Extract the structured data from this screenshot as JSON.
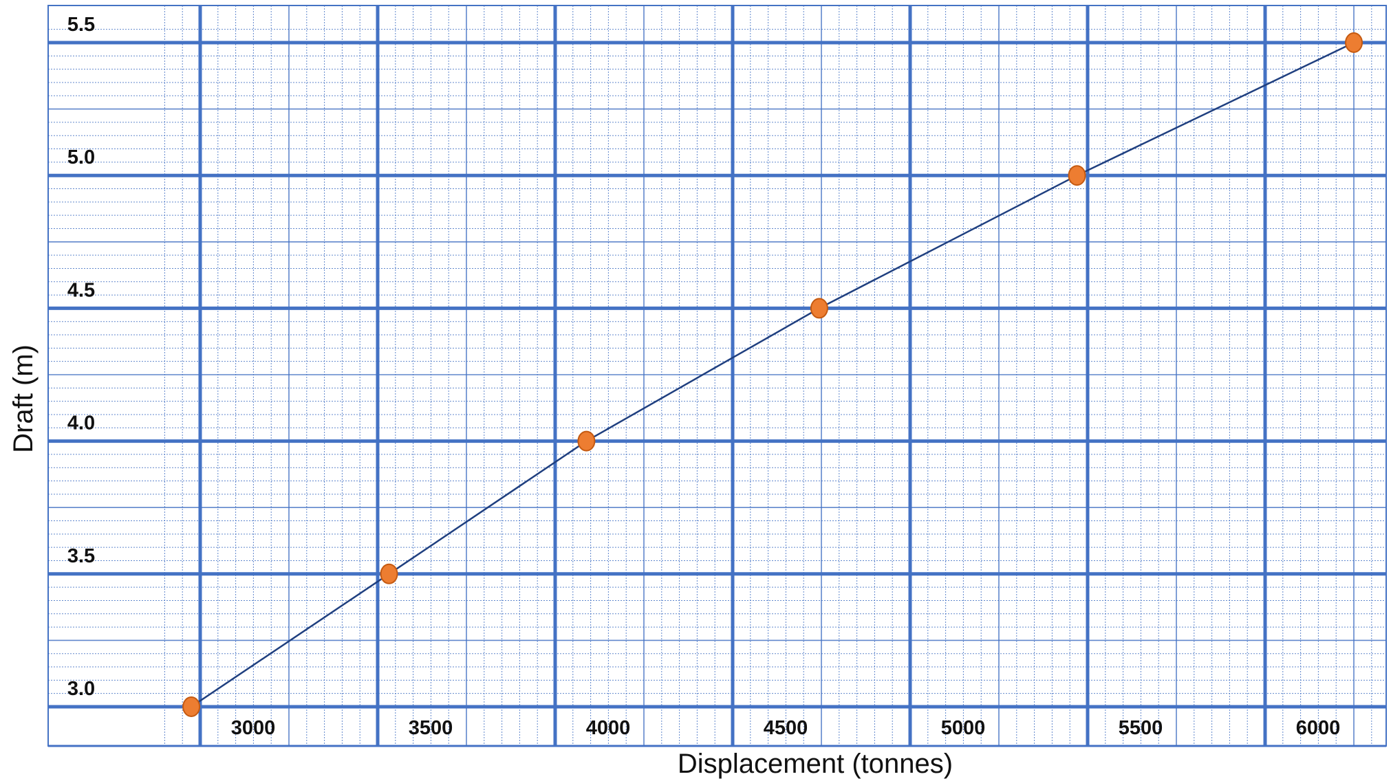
{
  "chart_data": {
    "type": "line",
    "title": "",
    "xlabel": "Displacement (tonnes)",
    "ylabel": "Draft (m)",
    "x_ticks": [
      "3000",
      "3500",
      "4000",
      "4500",
      "5000",
      "5500",
      "6000"
    ],
    "y_ticks": [
      "3.0",
      "3.5",
      "4.0",
      "4.5",
      "5.0",
      "5.5"
    ],
    "xlim": [
      2700,
      6100
    ],
    "ylim": [
      2.925,
      5.575
    ],
    "grid": true,
    "legend": "none",
    "series": [
      {
        "x": [
          2725,
          3282,
          3838,
          4494,
          5220,
          6000
        ],
        "y": [
          3.0,
          3.5,
          4.0,
          4.5,
          5.0,
          5.5
        ]
      }
    ],
    "colors": {
      "major_grid": "#4472C4",
      "minor_grid": "#4472C4",
      "line": "#1F3F7F",
      "marker_fill": "#ED7D31",
      "marker_stroke": "#C55A11"
    }
  }
}
